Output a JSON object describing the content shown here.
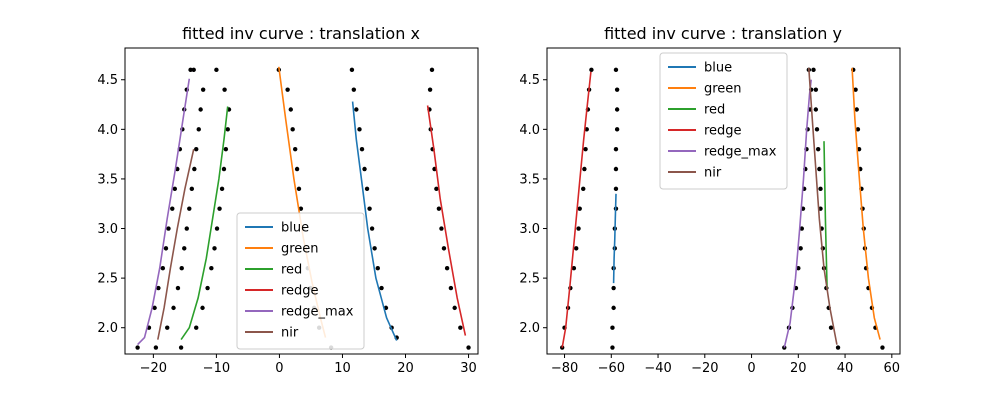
{
  "chart_data": [
    {
      "type": "scatter",
      "title": "fitted inv curve : translation x",
      "xlabel": "",
      "ylabel": "",
      "xlim": [
        -24.5,
        31.5
      ],
      "ylim": [
        1.735,
        4.82
      ],
      "xticks": [
        -20,
        -10,
        0,
        10,
        20,
        30
      ],
      "xtick_labels": [
        "−20",
        "−10",
        "0",
        "10",
        "20",
        "30"
      ],
      "yticks": [
        2.0,
        2.5,
        3.0,
        3.5,
        4.0,
        4.5
      ],
      "ytick_labels": [
        "2.0",
        "2.5",
        "3.0",
        "3.5",
        "4.0",
        "4.5"
      ],
      "legend_position": "lower-center",
      "scatter_color": "#000000",
      "points": [
        [
          -22.5,
          1.8
        ],
        [
          -20.7,
          2.0
        ],
        [
          -19.8,
          2.2
        ],
        [
          -19.2,
          2.4
        ],
        [
          -18.5,
          2.6
        ],
        [
          -18.0,
          2.8
        ],
        [
          -17.6,
          3.0
        ],
        [
          -17.0,
          3.2
        ],
        [
          -16.6,
          3.4
        ],
        [
          -16.2,
          3.6
        ],
        [
          -15.8,
          3.8
        ],
        [
          -15.4,
          4.0
        ],
        [
          -15.1,
          4.2
        ],
        [
          -14.7,
          4.4
        ],
        [
          -14.1,
          4.6
        ],
        [
          -19.6,
          1.8
        ],
        [
          -17.8,
          2.0
        ],
        [
          -16.8,
          2.2
        ],
        [
          -16.1,
          2.4
        ],
        [
          -15.5,
          2.6
        ],
        [
          -15.1,
          2.8
        ],
        [
          -14.7,
          3.0
        ],
        [
          -14.3,
          3.2
        ],
        [
          -13.9,
          3.4
        ],
        [
          -13.5,
          3.6
        ],
        [
          -13.2,
          3.8
        ],
        [
          -12.8,
          4.0
        ],
        [
          -12.5,
          4.2
        ],
        [
          -12.1,
          4.4
        ],
        [
          -13.6,
          4.6
        ],
        [
          -15.6,
          1.8
        ],
        [
          -13.2,
          2.0
        ],
        [
          -12.2,
          2.2
        ],
        [
          -11.4,
          2.4
        ],
        [
          -10.8,
          2.6
        ],
        [
          -10.3,
          2.8
        ],
        [
          -9.9,
          3.0
        ],
        [
          -9.5,
          3.2
        ],
        [
          -9.1,
          3.4
        ],
        [
          -8.8,
          3.6
        ],
        [
          -8.5,
          3.8
        ],
        [
          -8.2,
          4.0
        ],
        [
          -8.0,
          4.2
        ],
        [
          -8.7,
          4.4
        ],
        [
          -10.0,
          4.6
        ],
        [
          8.2,
          1.8
        ],
        [
          6.3,
          2.0
        ],
        [
          5.5,
          2.2
        ],
        [
          4.9,
          2.4
        ],
        [
          4.5,
          2.6
        ],
        [
          4.1,
          2.8
        ],
        [
          3.8,
          3.0
        ],
        [
          3.4,
          3.2
        ],
        [
          3.1,
          3.4
        ],
        [
          2.8,
          3.6
        ],
        [
          2.5,
          3.8
        ],
        [
          2.1,
          4.0
        ],
        [
          1.8,
          4.2
        ],
        [
          1.3,
          4.4
        ],
        [
          -0.1,
          4.6
        ],
        [
          18.6,
          1.9
        ],
        [
          17.8,
          2.0
        ],
        [
          16.9,
          2.2
        ],
        [
          16.2,
          2.4
        ],
        [
          15.6,
          2.6
        ],
        [
          15.1,
          2.8
        ],
        [
          14.7,
          3.0
        ],
        [
          14.3,
          3.2
        ],
        [
          13.9,
          3.4
        ],
        [
          13.5,
          3.6
        ],
        [
          13.1,
          3.8
        ],
        [
          12.7,
          4.0
        ],
        [
          12.2,
          4.2
        ],
        [
          11.8,
          4.4
        ],
        [
          11.5,
          4.6
        ],
        [
          30.0,
          1.8
        ],
        [
          28.7,
          2.0
        ],
        [
          27.8,
          2.2
        ],
        [
          27.2,
          2.4
        ],
        [
          26.6,
          2.6
        ],
        [
          26.1,
          2.8
        ],
        [
          25.7,
          3.0
        ],
        [
          25.3,
          3.2
        ],
        [
          24.9,
          3.4
        ],
        [
          24.6,
          3.6
        ],
        [
          24.3,
          3.8
        ],
        [
          24.0,
          4.0
        ],
        [
          23.8,
          4.2
        ],
        [
          23.9,
          4.4
        ],
        [
          24.2,
          4.6
        ]
      ],
      "series": [
        {
          "name": "blue",
          "color": "#1f77b4",
          "x": [
            11.6,
            12.2,
            13.0,
            14.0,
            15.3,
            17.0,
            18.6
          ],
          "y": [
            4.28,
            3.9,
            3.5,
            3.0,
            2.5,
            2.1,
            1.87
          ]
        },
        {
          "name": "green",
          "color": "#ff7f0e",
          "x": [
            -0.1,
            1.0,
            2.3,
            3.8,
            5.2,
            6.5,
            7.3
          ],
          "y": [
            4.63,
            4.1,
            3.5,
            2.9,
            2.45,
            2.1,
            1.9
          ]
        },
        {
          "name": "red",
          "color": "#2ca02c",
          "x": [
            -15.6,
            -14.3,
            -12.9,
            -11.6,
            -10.6,
            -9.6,
            -8.8,
            -8.2
          ],
          "y": [
            1.88,
            2.0,
            2.3,
            2.7,
            3.1,
            3.5,
            3.9,
            4.23
          ]
        },
        {
          "name": "redge",
          "color": "#d62728",
          "x": [
            23.5,
            24.5,
            25.5,
            26.8,
            28.2,
            29.5
          ],
          "y": [
            4.24,
            3.8,
            3.3,
            2.8,
            2.3,
            1.92
          ]
        },
        {
          "name": "redge_max",
          "color": "#9467bd",
          "x": [
            -22.5,
            -21.4,
            -20.2,
            -19.0,
            -17.8,
            -16.5,
            -15.3,
            -14.3
          ],
          "y": [
            1.83,
            1.9,
            2.2,
            2.6,
            3.1,
            3.6,
            4.1,
            4.51
          ]
        },
        {
          "name": "nir",
          "color": "#8c564b",
          "x": [
            -19.3,
            -18.3,
            -17.3,
            -16.2,
            -15.0,
            -13.6
          ],
          "y": [
            1.88,
            2.2,
            2.6,
            3.0,
            3.4,
            3.8
          ]
        }
      ]
    },
    {
      "type": "scatter",
      "title": "fitted inv curve : translation y",
      "xlabel": "",
      "ylabel": "",
      "xlim": [
        -87.5,
        63.5
      ],
      "ylim": [
        1.735,
        4.82
      ],
      "xticks": [
        -80,
        -60,
        -40,
        -20,
        0,
        20,
        40,
        60
      ],
      "xtick_labels": [
        "−80",
        "−60",
        "−40",
        "−20",
        "0",
        "20",
        "40",
        "60"
      ],
      "yticks": [
        2.0,
        2.5,
        3.0,
        3.5,
        4.0,
        4.5
      ],
      "ytick_labels": [
        "2.0",
        "2.5",
        "3.0",
        "3.5",
        "4.0",
        "4.5"
      ],
      "legend_position": "upper-center",
      "scatter_color": "#000000",
      "points": [
        [
          -81.0,
          1.8
        ],
        [
          -80.0,
          2.0
        ],
        [
          -78.5,
          2.2
        ],
        [
          -77.5,
          2.4
        ],
        [
          -76.0,
          2.6
        ],
        [
          -75.0,
          2.8
        ],
        [
          -74.0,
          3.0
        ],
        [
          -73.5,
          3.2
        ],
        [
          -72.0,
          3.4
        ],
        [
          -71.5,
          3.6
        ],
        [
          -71.0,
          3.8
        ],
        [
          -70.5,
          4.0
        ],
        [
          -70.0,
          4.2
        ],
        [
          -69.5,
          4.4
        ],
        [
          -68.5,
          4.6
        ],
        [
          -59.5,
          1.8
        ],
        [
          -59.5,
          2.0
        ],
        [
          -59.0,
          2.2
        ],
        [
          -59.0,
          2.4
        ],
        [
          -59.0,
          2.6
        ],
        [
          -58.5,
          2.8
        ],
        [
          -58.5,
          3.0
        ],
        [
          -58.0,
          3.2
        ],
        [
          -58.0,
          3.4
        ],
        [
          -58.0,
          3.6
        ],
        [
          -58.0,
          3.8
        ],
        [
          -57.5,
          4.0
        ],
        [
          -57.5,
          4.2
        ],
        [
          -57.5,
          4.4
        ],
        [
          -58.0,
          4.6
        ],
        [
          14.0,
          1.8
        ],
        [
          16.0,
          2.0
        ],
        [
          17.5,
          2.2
        ],
        [
          19.0,
          2.4
        ],
        [
          20.0,
          2.6
        ],
        [
          21.0,
          2.8
        ],
        [
          21.5,
          3.0
        ],
        [
          22.0,
          3.2
        ],
        [
          22.5,
          3.4
        ],
        [
          23.0,
          3.6
        ],
        [
          23.5,
          3.8
        ],
        [
          24.0,
          4.0
        ],
        [
          25.0,
          4.2
        ],
        [
          25.5,
          4.4
        ],
        [
          24.5,
          4.6
        ],
        [
          37.0,
          1.8
        ],
        [
          34.0,
          2.0
        ],
        [
          33.0,
          2.2
        ],
        [
          32.0,
          2.4
        ],
        [
          31.0,
          2.6
        ],
        [
          30.5,
          2.8
        ],
        [
          30.0,
          3.0
        ],
        [
          29.5,
          3.2
        ],
        [
          29.5,
          3.4
        ],
        [
          29.0,
          3.6
        ],
        [
          28.5,
          3.8
        ],
        [
          28.0,
          4.0
        ],
        [
          27.5,
          4.2
        ],
        [
          27.5,
          4.4
        ],
        [
          26.5,
          4.6
        ],
        [
          56.0,
          1.8
        ],
        [
          53.0,
          2.0
        ],
        [
          51.5,
          2.2
        ],
        [
          50.0,
          2.4
        ],
        [
          49.0,
          2.6
        ],
        [
          48.5,
          2.8
        ],
        [
          48.0,
          3.0
        ],
        [
          47.5,
          3.2
        ],
        [
          47.0,
          3.4
        ],
        [
          46.5,
          3.6
        ],
        [
          46.0,
          3.8
        ],
        [
          45.5,
          4.0
        ],
        [
          45.0,
          4.2
        ],
        [
          44.5,
          4.4
        ],
        [
          43.5,
          4.6
        ]
      ],
      "series": [
        {
          "name": "blue",
          "color": "#1f77b4",
          "x": [
            -59.0,
            -58.8,
            -58.5,
            -58.3,
            -58.0
          ],
          "y": [
            2.45,
            2.7,
            2.9,
            3.1,
            3.35
          ]
        },
        {
          "name": "green",
          "color": "#ff7f0e",
          "x": [
            43.0,
            44.2,
            45.8,
            47.8,
            50.0,
            52.5,
            55.0
          ],
          "y": [
            4.62,
            4.1,
            3.6,
            3.0,
            2.5,
            2.1,
            1.88
          ]
        },
        {
          "name": "red",
          "color": "#2ca02c",
          "x": [
            31.0,
            31.3,
            31.6,
            31.9,
            32.3
          ],
          "y": [
            3.88,
            3.5,
            3.1,
            2.8,
            2.4
          ]
        },
        {
          "name": "redge",
          "color": "#d62728",
          "x": [
            -81.0,
            -79.5,
            -77.8,
            -75.8,
            -73.8,
            -71.8,
            -70.0,
            -68.7
          ],
          "y": [
            1.8,
            2.0,
            2.4,
            2.9,
            3.4,
            3.9,
            4.3,
            4.58
          ]
        },
        {
          "name": "redge_max",
          "color": "#9467bd",
          "x": [
            14.0,
            16.5,
            18.8,
            20.6,
            22.2,
            23.6,
            24.8,
            25.5
          ],
          "y": [
            1.8,
            2.05,
            2.5,
            3.0,
            3.5,
            4.0,
            4.35,
            4.5
          ]
        },
        {
          "name": "nir",
          "color": "#8c564b",
          "x": [
            24.5,
            26.0,
            27.5,
            29.0,
            31.0,
            33.5,
            36.5
          ],
          "y": [
            4.62,
            4.1,
            3.6,
            3.1,
            2.6,
            2.2,
            1.83
          ]
        }
      ]
    }
  ]
}
